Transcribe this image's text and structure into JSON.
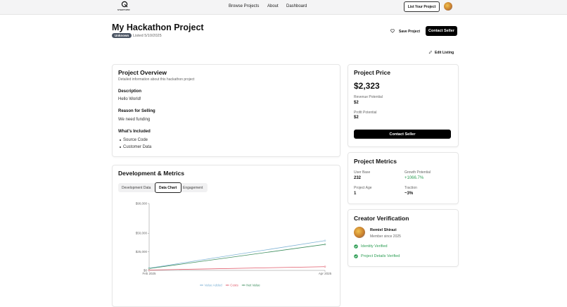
{
  "header": {
    "logo_text": "STARTUPR",
    "nav": [
      "Browse Projects",
      "About",
      "Dashboard"
    ],
    "list_button": "List Your Project"
  },
  "project": {
    "title": "My Hackathon Project",
    "status": "Unknown",
    "listed": "Listed 5/10/2025",
    "save": "Save Project",
    "contact": "Contact Seller",
    "edit": "Edit Listing"
  },
  "overview": {
    "title": "Project Overview",
    "subtitle": "Detailed information about this hackathon project",
    "description_label": "Description",
    "description": "Hello World!",
    "reason_label": "Reason for Selling",
    "reason": "We need funding",
    "included_label": "What's Included",
    "included": [
      "Source Code",
      "Customer Data"
    ]
  },
  "development": {
    "title": "Development & Metrics",
    "tabs": [
      "Development Data",
      "Data Chart",
      "Engagement"
    ]
  },
  "chart": {
    "type": "line",
    "categories": [
      "Feb 2025",
      "Apr 2025"
    ],
    "series": [
      {
        "name": "Value Added",
        "color": "#7fb3d5",
        "values": [
          3000,
          40000
        ]
      },
      {
        "name": "Costs",
        "color": "#e05a6a",
        "values": [
          500,
          5000
        ]
      },
      {
        "name": "Net Value",
        "color": "#3e8e5e",
        "values": [
          2500,
          35000
        ]
      }
    ],
    "ylim": [
      0,
      90000
    ],
    "yticks": [
      {
        "value": 0,
        "label": "$0"
      },
      {
        "value": 25000,
        "label": "$25,000"
      },
      {
        "value": 50000,
        "label": "$50,000"
      },
      {
        "value": 90000,
        "label": "$90,000"
      }
    ]
  },
  "price": {
    "title": "Project Price",
    "amount": "$2,323",
    "revenue_label": "Revenue Potential",
    "revenue": "$2",
    "profit_label": "Profit Potential",
    "profit": "$2",
    "contact": "Contact Seller"
  },
  "project_metrics": {
    "title": "Project Metrics",
    "items": [
      {
        "label": "User Base",
        "value": "232"
      },
      {
        "label": "Growth Potential",
        "value": "+1066.7%"
      },
      {
        "label": "Project Age",
        "value": "1"
      },
      {
        "label": "Traction",
        "value": "~3%"
      }
    ]
  },
  "creator": {
    "title": "Creator Verification",
    "name": "Remiel Shirazi",
    "member": "Member since 2025",
    "checks": [
      "Identity Verified",
      "Project Details Verified"
    ]
  }
}
